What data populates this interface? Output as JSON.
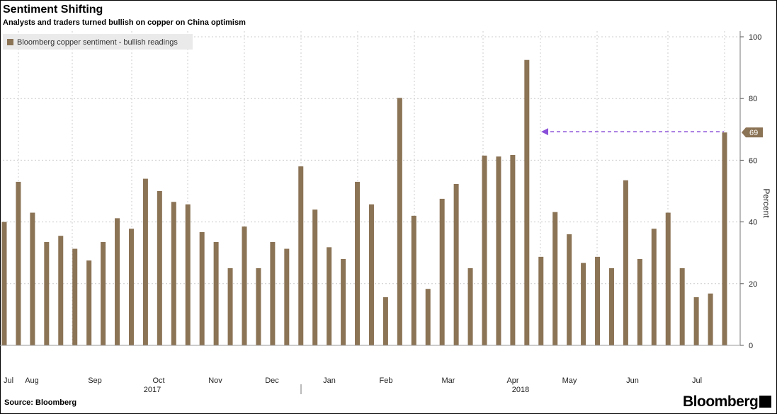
{
  "title": "Sentiment Shifting",
  "subtitle": "Analysts and traders turned bullish on copper on China optimism",
  "source": "Source: Bloomberg",
  "brand": "Bloomberg",
  "colors": {
    "bar": "#8b7355",
    "grid": "#cccccc",
    "arrow": "#8a4fd8",
    "tag": "#8b7355"
  },
  "chart_data": {
    "type": "bar",
    "title": "Sentiment Shifting",
    "subtitle": "Analysts and traders turned bullish on copper on China optimism",
    "xlabel": "",
    "ylabel": "Percent",
    "ylim": [
      0,
      100
    ],
    "yticks": [
      0,
      20,
      40,
      60,
      80,
      100
    ],
    "y_axis_position": "right",
    "grid": true,
    "legend": {
      "position": "top-left",
      "entries": [
        "Bloomberg copper sentiment - bullish readings"
      ]
    },
    "x_tick_labels": [
      "Jul",
      "Aug",
      "Sep",
      "Oct",
      "Nov",
      "Dec",
      "Jan",
      "Feb",
      "Mar",
      "Apr",
      "May",
      "Jun",
      "Jul"
    ],
    "year_labels": [
      "2017",
      "2018"
    ],
    "series": [
      {
        "name": "Bloomberg copper sentiment - bullish readings",
        "values": [
          40,
          53,
          43,
          33.5,
          35.5,
          31.3,
          27.5,
          33.5,
          41.2,
          37.8,
          54,
          50,
          46.5,
          45.7,
          36.7,
          33.5,
          25,
          38.5,
          25,
          33.5,
          31.3,
          58,
          44,
          31.8,
          28,
          53,
          45.7,
          15.6,
          80.2,
          42,
          18.3,
          47.5,
          52.3,
          25,
          61.5,
          61.2,
          61.7,
          92.5,
          28.7,
          43.2,
          36,
          26.7,
          28.7,
          25,
          53.5,
          28,
          37.8,
          43,
          25,
          15.6,
          16.8,
          69
        ]
      }
    ],
    "annotations": [
      {
        "type": "value-tag",
        "text": "69"
      },
      {
        "type": "dashed-arrow",
        "from_value": 69,
        "note": "horizontal reference arrow pointing left"
      }
    ]
  }
}
